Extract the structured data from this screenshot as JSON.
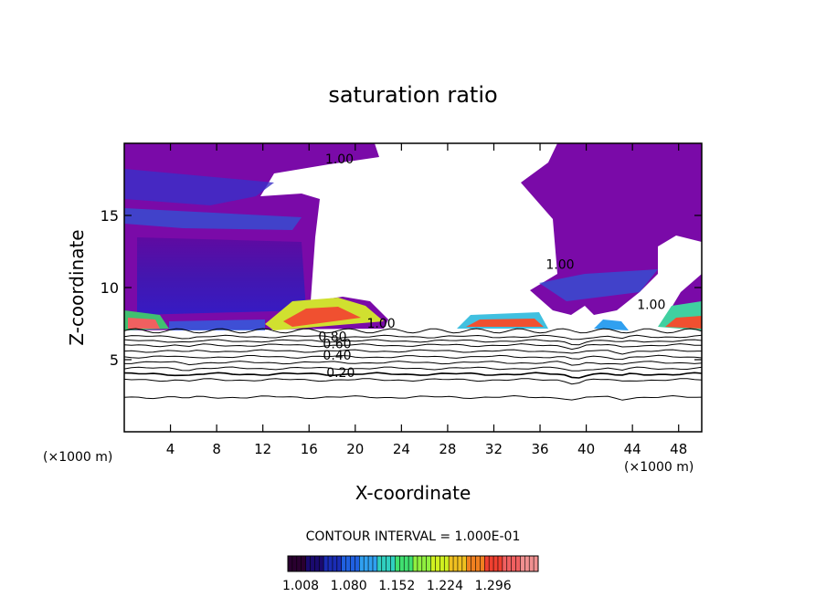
{
  "chart_data": {
    "type": "heatmap",
    "title": "saturation ratio",
    "xlabel": "X-coordinate",
    "ylabel": "Z-coordinate",
    "x_unit_left": "(×1000 m)",
    "x_unit_right": "(×1000 m)",
    "xlim": [
      0,
      50
    ],
    "ylim": [
      0,
      20
    ],
    "x_ticks": [
      4,
      8,
      12,
      16,
      20,
      24,
      28,
      32,
      36,
      40,
      44,
      48
    ],
    "y_ticks": [
      5,
      10,
      15
    ],
    "contour_interval_text": "CONTOUR INTERVAL = 1.000E-01",
    "contour_labels": [
      {
        "text": "1.00",
        "x": 17.4,
        "y": 18.6
      },
      {
        "text": "1.00",
        "x": 21.0,
        "y": 7.2
      },
      {
        "text": "1.00",
        "x": 36.5,
        "y": 11.3
      },
      {
        "text": "1.00",
        "x": 44.4,
        "y": 8.5
      },
      {
        "text": "0.80",
        "x": 16.8,
        "y": 6.3
      },
      {
        "text": "0.60",
        "x": 17.2,
        "y": 5.8
      },
      {
        "text": "0.40",
        "x": 17.2,
        "y": 5.0
      },
      {
        "text": "0.20",
        "x": 17.5,
        "y": 3.8
      }
    ],
    "colorbar": {
      "ticks": [
        "1.008",
        "1.080",
        "1.152",
        "1.224",
        "1.296"
      ],
      "colors": [
        "#2a0030",
        "#1a0a6e",
        "#1a2cb4",
        "#2060e0",
        "#30a0f0",
        "#30d0c0",
        "#40e070",
        "#90f040",
        "#d0f020",
        "#f0c020",
        "#f08020",
        "#f04030",
        "#f06060",
        "#f09090"
      ]
    }
  }
}
